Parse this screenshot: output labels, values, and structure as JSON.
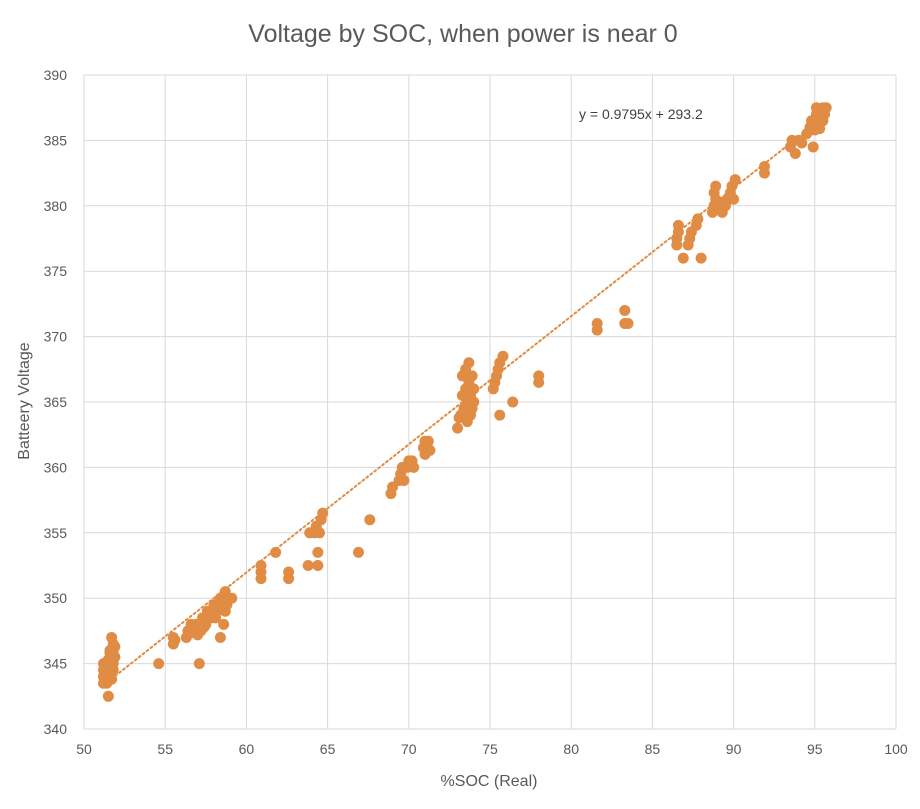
{
  "chart_data": {
    "type": "scatter",
    "title": "Voltage by SOC, when power is near 0",
    "xlabel": "%SOC (Real)",
    "ylabel": "Batteery Voltage",
    "xlim": [
      50,
      100
    ],
    "ylim": [
      340,
      390
    ],
    "xticks": [
      "50",
      "55",
      "60",
      "65",
      "70",
      "75",
      "80",
      "85",
      "90",
      "95",
      "100"
    ],
    "yticks": [
      "340",
      "345",
      "350",
      "355",
      "360",
      "365",
      "370",
      "375",
      "380",
      "385",
      "390"
    ],
    "grid": true,
    "marker_color": "#E08C45",
    "trendline": {
      "type": "linear",
      "slope": 0.9795,
      "intercept": 293.2,
      "x_range": [
        51.2,
        95.5
      ],
      "style": "dotted",
      "color": "#E08C45",
      "equation_label": "y = 0.9795x + 293.2"
    },
    "series": [
      {
        "points": [
          [
            51.2,
            343.5
          ],
          [
            51.2,
            344.0
          ],
          [
            51.2,
            344.5
          ],
          [
            51.2,
            345.0
          ],
          [
            51.3,
            343.8
          ],
          [
            51.3,
            344.3
          ],
          [
            51.3,
            344.8
          ],
          [
            51.4,
            343.5
          ],
          [
            51.4,
            344.0
          ],
          [
            51.4,
            345.0
          ],
          [
            51.5,
            342.5
          ],
          [
            51.5,
            344.0
          ],
          [
            51.5,
            344.5
          ],
          [
            51.5,
            345.3
          ],
          [
            51.6,
            344.0
          ],
          [
            51.6,
            345.0
          ],
          [
            51.6,
            346.0
          ],
          [
            51.7,
            343.8
          ],
          [
            51.7,
            344.5
          ],
          [
            51.7,
            345.5
          ],
          [
            51.7,
            347.0
          ],
          [
            51.8,
            344.5
          ],
          [
            51.8,
            345.0
          ],
          [
            51.8,
            346.0
          ],
          [
            51.9,
            345.5
          ],
          [
            51.9,
            346.3
          ],
          [
            51.6,
            345.8
          ],
          [
            51.8,
            346.5
          ],
          [
            54.6,
            345.0
          ],
          [
            55.5,
            346.5
          ],
          [
            55.5,
            347.0
          ],
          [
            55.6,
            346.8
          ],
          [
            56.3,
            347.0
          ],
          [
            56.4,
            347.5
          ],
          [
            56.5,
            347.3
          ],
          [
            56.6,
            348.0
          ],
          [
            56.7,
            347.8
          ],
          [
            56.8,
            347.5
          ],
          [
            56.9,
            348.0
          ],
          [
            57.0,
            347.2
          ],
          [
            57.1,
            345.0
          ],
          [
            57.1,
            348.0
          ],
          [
            57.2,
            347.5
          ],
          [
            57.3,
            348.5
          ],
          [
            57.4,
            347.8
          ],
          [
            57.5,
            348.0
          ],
          [
            57.6,
            349.0
          ],
          [
            57.8,
            348.5
          ],
          [
            57.9,
            349.0
          ],
          [
            58.0,
            349.5
          ],
          [
            58.1,
            348.5
          ],
          [
            58.2,
            349.0
          ],
          [
            58.3,
            349.5
          ],
          [
            58.4,
            347.0
          ],
          [
            58.4,
            350.0
          ],
          [
            58.5,
            349.2
          ],
          [
            58.6,
            348.0
          ],
          [
            58.6,
            350.2
          ],
          [
            58.7,
            349.0
          ],
          [
            58.7,
            350.5
          ],
          [
            58.8,
            349.5
          ],
          [
            59.1,
            350.0
          ],
          [
            60.9,
            351.5
          ],
          [
            60.9,
            352.0
          ],
          [
            60.9,
            352.5
          ],
          [
            61.8,
            353.5
          ],
          [
            62.6,
            351.5
          ],
          [
            62.6,
            352.0
          ],
          [
            63.8,
            352.5
          ],
          [
            63.9,
            355.0
          ],
          [
            64.2,
            355.0
          ],
          [
            64.3,
            355.5
          ],
          [
            64.4,
            353.5
          ],
          [
            64.4,
            352.5
          ],
          [
            64.5,
            355.0
          ],
          [
            64.6,
            356.0
          ],
          [
            64.7,
            356.5
          ],
          [
            66.9,
            353.5
          ],
          [
            67.6,
            356.0
          ],
          [
            68.9,
            358.0
          ],
          [
            69.0,
            358.5
          ],
          [
            69.4,
            359.0
          ],
          [
            69.5,
            359.5
          ],
          [
            69.6,
            360.0
          ],
          [
            69.7,
            359.0
          ],
          [
            69.9,
            360.0
          ],
          [
            70.0,
            360.5
          ],
          [
            70.2,
            360.5
          ],
          [
            70.3,
            360.0
          ],
          [
            70.9,
            361.5
          ],
          [
            71.0,
            362.0
          ],
          [
            71.0,
            361.0
          ],
          [
            71.1,
            361.5
          ],
          [
            71.2,
            362.0
          ],
          [
            71.3,
            361.3
          ],
          [
            73.0,
            363.0
          ],
          [
            73.1,
            363.8
          ],
          [
            73.2,
            364.0
          ],
          [
            73.3,
            365.5
          ],
          [
            73.3,
            367.0
          ],
          [
            73.4,
            364.5
          ],
          [
            73.5,
            366.0
          ],
          [
            73.5,
            367.5
          ],
          [
            73.6,
            363.5
          ],
          [
            73.6,
            365.0
          ],
          [
            73.7,
            366.5
          ],
          [
            73.7,
            368.0
          ],
          [
            73.8,
            364.0
          ],
          [
            73.8,
            365.5
          ],
          [
            73.9,
            367.0
          ],
          [
            73.9,
            364.5
          ],
          [
            74.0,
            366.0
          ],
          [
            74.0,
            365.0
          ],
          [
            75.2,
            366.0
          ],
          [
            75.3,
            366.5
          ],
          [
            75.4,
            367.0
          ],
          [
            75.5,
            367.5
          ],
          [
            75.6,
            364.0
          ],
          [
            75.6,
            368.0
          ],
          [
            75.8,
            368.5
          ],
          [
            76.4,
            365.0
          ],
          [
            78.0,
            366.5
          ],
          [
            78.0,
            367.0
          ],
          [
            81.6,
            370.5
          ],
          [
            81.6,
            371.0
          ],
          [
            83.3,
            371.0
          ],
          [
            83.3,
            372.0
          ],
          [
            83.5,
            371.0
          ],
          [
            86.5,
            377.0
          ],
          [
            86.5,
            377.5
          ],
          [
            86.6,
            378.0
          ],
          [
            86.6,
            378.5
          ],
          [
            86.9,
            376.0
          ],
          [
            87.2,
            377.0
          ],
          [
            87.3,
            377.5
          ],
          [
            87.4,
            378.0
          ],
          [
            87.7,
            378.5
          ],
          [
            87.8,
            379.0
          ],
          [
            88.0,
            376.0
          ],
          [
            88.7,
            379.5
          ],
          [
            88.8,
            380.0
          ],
          [
            88.8,
            381.0
          ],
          [
            88.9,
            380.5
          ],
          [
            88.9,
            381.5
          ],
          [
            89.0,
            379.8
          ],
          [
            89.1,
            380.2
          ],
          [
            89.3,
            379.5
          ],
          [
            89.5,
            380.0
          ],
          [
            89.6,
            380.5
          ],
          [
            89.8,
            381.0
          ],
          [
            89.9,
            381.5
          ],
          [
            90.0,
            380.5
          ],
          [
            90.1,
            382.0
          ],
          [
            91.9,
            382.5
          ],
          [
            91.9,
            383.0
          ],
          [
            93.5,
            384.5
          ],
          [
            93.6,
            385.0
          ],
          [
            93.8,
            384.0
          ],
          [
            94.0,
            385.0
          ],
          [
            94.2,
            384.8
          ],
          [
            94.5,
            385.5
          ],
          [
            94.7,
            386.0
          ],
          [
            94.8,
            386.5
          ],
          [
            94.9,
            384.5
          ],
          [
            95.0,
            385.8
          ],
          [
            95.1,
            387.0
          ],
          [
            95.1,
            387.5
          ],
          [
            95.2,
            386.2
          ],
          [
            95.3,
            386.8
          ],
          [
            95.4,
            387.2
          ],
          [
            95.5,
            387.5
          ],
          [
            95.6,
            387.0
          ],
          [
            95.7,
            387.5
          ],
          [
            95.3,
            385.9
          ],
          [
            95.5,
            386.5
          ]
        ]
      }
    ]
  }
}
